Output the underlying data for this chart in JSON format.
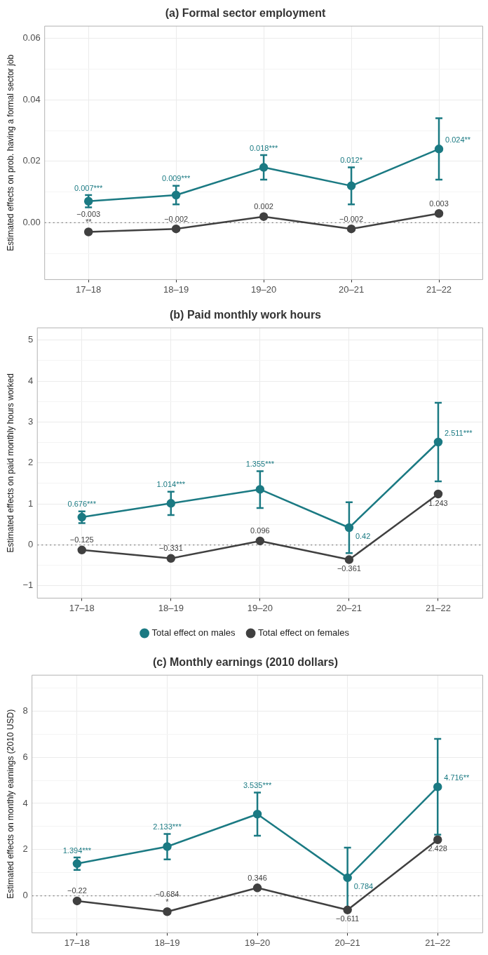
{
  "chart_data": [
    {
      "type": "line",
      "title": "(a) Formal sector employment",
      "ylabel": "Estimated effects on prob. having a formal sector job",
      "categories": [
        "17–18",
        "18–19",
        "19–20",
        "20–21",
        "21–22"
      ],
      "ylim": [
        -0.0185,
        0.064
      ],
      "yticks": [
        {
          "value": -0.01,
          "label": null
        },
        "0.00",
        {
          "value": 0.01,
          "label": null
        },
        {
          "value": 0.02,
          "label": "0.02"
        },
        {
          "value": 0.03,
          "label": null
        },
        {
          "value": 0.04,
          "label": "0.04"
        },
        {
          "value": 0.05,
          "label": null
        },
        {
          "value": 0.06,
          "label": "0.06"
        }
      ],
      "grid": true,
      "marker": "circle",
      "ref_lines": [
        {
          "axis": "y",
          "value": 0,
          "color": "#7f7f7f",
          "line_style": "dotted"
        }
      ],
      "series": [
        {
          "color": "#1b7a83",
          "values": [
            0.007,
            0.009,
            0.018,
            0.012,
            0.024
          ],
          "errors": [
            [
              0.005,
              0.009
            ],
            [
              0.006,
              0.012
            ],
            [
              0.014,
              0.022
            ],
            [
              0.006,
              0.018
            ],
            [
              0.014,
              0.034
            ]
          ],
          "value_labels": [
            "0.007***",
            "0.009***",
            "0.018***",
            "0.012*",
            "0.024**"
          ]
        },
        {
          "color": "#404040",
          "values": [
            -0.003,
            -0.002,
            0.002,
            -0.002,
            0.003
          ],
          "value_labels": [
            "−0.003\n**",
            "−0.002",
            "0.002",
            "−0.002",
            "0.003"
          ]
        }
      ]
    },
    {
      "type": "line",
      "title": "(b) Paid monthly work hours",
      "ylabel": "Estimated effects on paid monthly hours worked",
      "categories": [
        "17–18",
        "18–19",
        "19–20",
        "20–21",
        "21–22"
      ],
      "ylim": [
        -1.3,
        5.3
      ],
      "yticks": [
        {
          "value": -1,
          "label": "−1"
        },
        {
          "value": -0.5,
          "label": null
        },
        0,
        {
          "value": 0.5,
          "label": null
        },
        1,
        {
          "value": 1.5,
          "label": null
        },
        2,
        {
          "value": 2.5,
          "label": null
        },
        3,
        {
          "value": 3.5,
          "label": null
        },
        4,
        {
          "value": 4.5,
          "label": null
        },
        5
      ],
      "grid": true,
      "marker": "circle",
      "legend": "bottom",
      "ref_lines": [
        {
          "axis": "y",
          "value": 0,
          "color": "#7f7f7f",
          "line_style": "dotted"
        }
      ],
      "series": [
        {
          "name": "Total effect on males",
          "color": "#1b7a83",
          "values": [
            0.676,
            1.014,
            1.355,
            0.42,
            2.511
          ],
          "errors": [
            [
              0.53,
              0.82
            ],
            [
              0.73,
              1.3
            ],
            [
              0.9,
              1.8
            ],
            [
              -0.2,
              1.04
            ],
            [
              1.55,
              3.47
            ]
          ],
          "value_labels": [
            "0.676***",
            "1.014***",
            "1.355***",
            "0.42",
            "2.511***"
          ]
        },
        {
          "name": "Total effect on females",
          "color": "#404040",
          "values": [
            -0.125,
            -0.331,
            0.096,
            -0.361,
            1.243
          ],
          "value_labels": [
            "−0.125",
            "−0.331",
            "0.096",
            "−0.361",
            "1.243"
          ]
        }
      ]
    },
    {
      "type": "line",
      "title": "(c) Monthly earnings (2010 dollars)",
      "ylabel": "Estimated effects on monthly earnings (2010 USD)",
      "categories": [
        "17–18",
        "18–19",
        "19–20",
        "20–21",
        "21–22"
      ],
      "ylim": [
        -1.6,
        9.55
      ],
      "yticks": [
        {
          "value": -1,
          "label": null
        },
        0,
        {
          "value": 1,
          "label": null
        },
        2,
        {
          "value": 3,
          "label": null
        },
        4,
        {
          "value": 5,
          "label": null
        },
        6,
        {
          "value": 7,
          "label": null
        },
        8,
        {
          "value": 9,
          "label": null
        }
      ],
      "grid": true,
      "marker": "circle",
      "ref_lines": [
        {
          "axis": "y",
          "value": 0,
          "color": "#7f7f7f",
          "line_style": "dotted"
        }
      ],
      "series": [
        {
          "color": "#1b7a83",
          "values": [
            1.394,
            2.133,
            3.535,
            0.784,
            4.716
          ],
          "errors": [
            [
              1.12,
              1.66
            ],
            [
              1.58,
              2.68
            ],
            [
              2.6,
              4.47
            ],
            [
              -0.55,
              2.09
            ],
            [
              2.65,
              6.79
            ]
          ],
          "value_labels": [
            "1.394***",
            "2.133***",
            "3.535***",
            "0.784",
            "4.716**"
          ]
        },
        {
          "color": "#404040",
          "values": [
            -0.22,
            -0.684,
            0.346,
            -0.611,
            2.428
          ],
          "value_labels": [
            "−0.22",
            "−0.684\n*",
            "0.346",
            "−0.611",
            "2.428"
          ]
        }
      ]
    }
  ]
}
